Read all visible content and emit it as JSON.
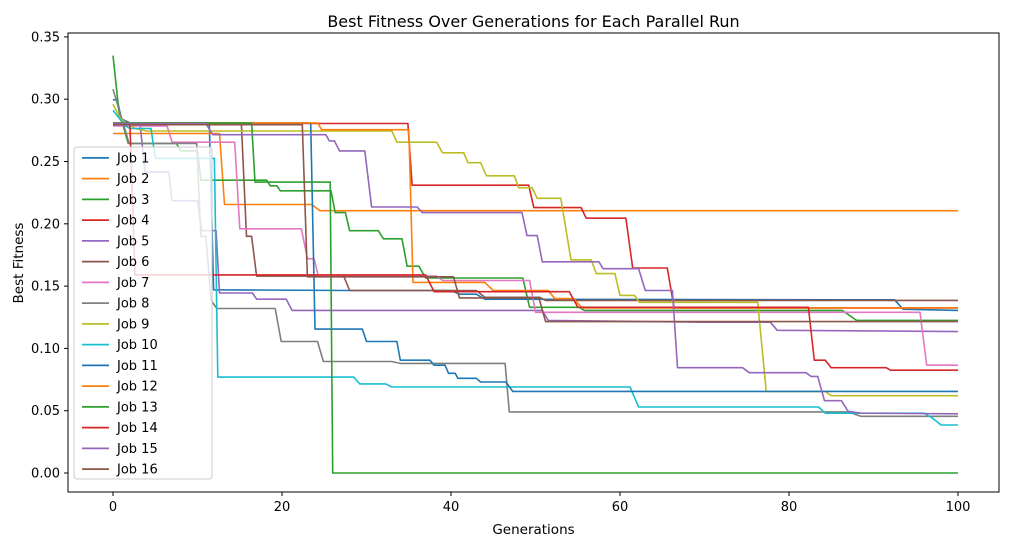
{
  "figure": {
    "title": "Best Fitness Over Generations for Each Parallel Run",
    "xlabel": "Generations",
    "ylabel": "Best Fitness"
  },
  "chart_data": {
    "type": "line",
    "title": "Best Fitness Over Generations for Each Parallel Run",
    "xlabel": "Generations",
    "ylabel": "Best Fitness",
    "xlim": [
      -5.3,
      104.9
    ],
    "ylim": [
      -0.016,
      0.352
    ],
    "xticks": [
      0,
      20,
      40,
      60,
      80,
      100
    ],
    "yticks": [
      "0.00",
      "0.05",
      "0.10",
      "0.15",
      "0.20",
      "0.25",
      "0.30",
      "0.35"
    ],
    "grid": false,
    "legend_position": "center left",
    "series": [
      {
        "name": "Job 1",
        "color": "#1f77b4",
        "points": [
          [
            0,
            0.2995
          ],
          [
            0.5,
            0.2995
          ],
          [
            1,
            0.284
          ],
          [
            2,
            0.281
          ],
          [
            11.4,
            0.281
          ],
          [
            11.9,
            0.147
          ],
          [
            28,
            0.1465
          ],
          [
            40,
            0.1465
          ],
          [
            41,
            0.1435
          ],
          [
            43,
            0.1435
          ],
          [
            44,
            0.1395
          ],
          [
            87,
            0.139
          ],
          [
            92.5,
            0.139
          ],
          [
            93.5,
            0.1315
          ],
          [
            100,
            0.1305
          ]
        ]
      },
      {
        "name": "Job 2",
        "color": "#ff7f0e",
        "points": [
          [
            0,
            0.2725
          ],
          [
            12.6,
            0.2725
          ],
          [
            13.2,
            0.2155
          ],
          [
            23.5,
            0.2155
          ],
          [
            24.5,
            0.2105
          ],
          [
            100,
            0.2105
          ]
        ]
      },
      {
        "name": "Job 3",
        "color": "#2ca02c",
        "points": [
          [
            0,
            0.335
          ],
          [
            0.7,
            0.2905
          ],
          [
            1.8,
            0.2645
          ],
          [
            7.5,
            0.2645
          ],
          [
            8,
            0.2585
          ],
          [
            10,
            0.2585
          ],
          [
            10.4,
            0.235
          ],
          [
            18.2,
            0.235
          ],
          [
            18.6,
            0.2305
          ],
          [
            19.4,
            0.2305
          ],
          [
            19.8,
            0.2265
          ],
          [
            25.8,
            0.2265
          ],
          [
            26.3,
            0.209
          ],
          [
            27.5,
            0.209
          ],
          [
            28,
            0.1945
          ],
          [
            31.4,
            0.1945
          ],
          [
            32,
            0.188
          ],
          [
            34.2,
            0.188
          ],
          [
            34.8,
            0.166
          ],
          [
            36.2,
            0.166
          ],
          [
            37,
            0.1565
          ],
          [
            48.5,
            0.1565
          ],
          [
            49.3,
            0.133
          ],
          [
            55.2,
            0.133
          ],
          [
            55.8,
            0.1305
          ],
          [
            86.3,
            0.1305
          ],
          [
            88,
            0.1225
          ],
          [
            100,
            0.1225
          ]
        ]
      },
      {
        "name": "Job 4",
        "color": "#d62728",
        "points": [
          [
            0,
            0.2805
          ],
          [
            34.9,
            0.2805
          ],
          [
            35.4,
            0.231
          ],
          [
            49.2,
            0.231
          ],
          [
            49.8,
            0.213
          ],
          [
            55.4,
            0.213
          ],
          [
            56,
            0.2045
          ],
          [
            60.7,
            0.2045
          ],
          [
            61.5,
            0.1645
          ],
          [
            65.6,
            0.1645
          ],
          [
            66.4,
            0.1325
          ],
          [
            100,
            0.1325
          ]
        ]
      },
      {
        "name": "Job 5",
        "color": "#9467bd",
        "points": [
          [
            0,
            0.2805
          ],
          [
            3.2,
            0.2805
          ],
          [
            3.8,
            0.2415
          ],
          [
            6.6,
            0.2415
          ],
          [
            7,
            0.2185
          ],
          [
            10,
            0.2185
          ],
          [
            10.5,
            0.1945
          ],
          [
            12.2,
            0.1945
          ],
          [
            12.6,
            0.1445
          ],
          [
            16.5,
            0.1445
          ],
          [
            17,
            0.1395
          ],
          [
            20.5,
            0.1395
          ],
          [
            21.2,
            0.1305
          ],
          [
            50.8,
            0.1305
          ],
          [
            51.5,
            0.1225
          ],
          [
            70,
            0.121
          ],
          [
            77.8,
            0.121
          ],
          [
            78.6,
            0.1145
          ],
          [
            100,
            0.1135
          ]
        ]
      },
      {
        "name": "Job 6",
        "color": "#8c564b",
        "points": [
          [
            0,
            0.2795
          ],
          [
            15.2,
            0.2795
          ],
          [
            15.8,
            0.19
          ],
          [
            16.4,
            0.19
          ],
          [
            17,
            0.158
          ],
          [
            27.3,
            0.158
          ],
          [
            28,
            0.1465
          ],
          [
            43,
            0.1465
          ],
          [
            44,
            0.141
          ],
          [
            50.5,
            0.141
          ],
          [
            51.2,
            0.1385
          ],
          [
            100,
            0.1385
          ]
        ]
      },
      {
        "name": "Job 7",
        "color": "#e377c2",
        "points": [
          [
            0,
            0.2785
          ],
          [
            6.4,
            0.2785
          ],
          [
            7,
            0.2655
          ],
          [
            14.4,
            0.2655
          ],
          [
            15,
            0.196
          ],
          [
            22.3,
            0.196
          ],
          [
            23,
            0.172
          ],
          [
            23.8,
            0.172
          ],
          [
            24.3,
            0.158
          ],
          [
            38.3,
            0.158
          ],
          [
            39,
            0.1545
          ],
          [
            49.3,
            0.1545
          ],
          [
            50,
            0.129
          ],
          [
            95.5,
            0.129
          ],
          [
            96.3,
            0.0865
          ],
          [
            100,
            0.0865
          ]
        ]
      },
      {
        "name": "Job 8",
        "color": "#7f7f7f",
        "points": [
          [
            0,
            0.308
          ],
          [
            1,
            0.285
          ],
          [
            1.9,
            0.2645
          ],
          [
            9.9,
            0.2645
          ],
          [
            10.4,
            0.19
          ],
          [
            11,
            0.19
          ],
          [
            11.6,
            0.1385
          ],
          [
            12.3,
            0.132
          ],
          [
            19.2,
            0.132
          ],
          [
            19.9,
            0.1055
          ],
          [
            24.2,
            0.1055
          ],
          [
            24.9,
            0.0895
          ],
          [
            33,
            0.0895
          ],
          [
            34,
            0.088
          ],
          [
            46.4,
            0.088
          ],
          [
            46.9,
            0.049
          ],
          [
            87,
            0.049
          ],
          [
            88.5,
            0.0455
          ],
          [
            100,
            0.0455
          ]
        ]
      },
      {
        "name": "Job 9",
        "color": "#bcbd22",
        "points": [
          [
            0,
            0.296
          ],
          [
            0.9,
            0.284
          ],
          [
            2.6,
            0.2765
          ],
          [
            4,
            0.2745
          ],
          [
            33,
            0.2745
          ],
          [
            33.6,
            0.2655
          ],
          [
            38.3,
            0.2655
          ],
          [
            39,
            0.257
          ],
          [
            41.5,
            0.257
          ],
          [
            42,
            0.249
          ],
          [
            43.5,
            0.249
          ],
          [
            44.2,
            0.2385
          ],
          [
            47.5,
            0.2385
          ],
          [
            48,
            0.229
          ],
          [
            49.6,
            0.229
          ],
          [
            50.2,
            0.2205
          ],
          [
            53,
            0.2205
          ],
          [
            54.2,
            0.171
          ],
          [
            56.6,
            0.171
          ],
          [
            57.2,
            0.16
          ],
          [
            59.4,
            0.16
          ],
          [
            60,
            0.1425
          ],
          [
            61.7,
            0.1425
          ],
          [
            62.3,
            0.137
          ],
          [
            76.3,
            0.137
          ],
          [
            77.3,
            0.0655
          ],
          [
            84.3,
            0.0655
          ],
          [
            85,
            0.062
          ],
          [
            100,
            0.062
          ]
        ]
      },
      {
        "name": "Job 10",
        "color": "#17becf",
        "points": [
          [
            0,
            0.291
          ],
          [
            1.4,
            0.279
          ],
          [
            2,
            0.2765
          ],
          [
            4.5,
            0.2765
          ],
          [
            5,
            0.2525
          ],
          [
            12,
            0.2525
          ],
          [
            12.4,
            0.077
          ],
          [
            28.5,
            0.077
          ],
          [
            29.2,
            0.0715
          ],
          [
            32.3,
            0.0715
          ],
          [
            33,
            0.069
          ],
          [
            61.2,
            0.069
          ],
          [
            62.2,
            0.053
          ],
          [
            83.5,
            0.053
          ],
          [
            84.3,
            0.048
          ],
          [
            96,
            0.048
          ],
          [
            97,
            0.044
          ],
          [
            98,
            0.0385
          ],
          [
            100,
            0.0385
          ]
        ]
      },
      {
        "name": "Job 11",
        "color": "#1f77b4",
        "points": [
          [
            0,
            0.281
          ],
          [
            23.4,
            0.281
          ],
          [
            23.9,
            0.1155
          ],
          [
            29.5,
            0.1155
          ],
          [
            30,
            0.1055
          ],
          [
            33.6,
            0.1055
          ],
          [
            34,
            0.0905
          ],
          [
            37.5,
            0.0905
          ],
          [
            38,
            0.0865
          ],
          [
            39.3,
            0.0865
          ],
          [
            39.7,
            0.08
          ],
          [
            40.5,
            0.08
          ],
          [
            40.8,
            0.076
          ],
          [
            43,
            0.076
          ],
          [
            43.5,
            0.073
          ],
          [
            46.5,
            0.073
          ],
          [
            47.3,
            0.0655
          ],
          [
            100,
            0.0655
          ]
        ]
      },
      {
        "name": "Job 12",
        "color": "#ff7f0e",
        "points": [
          [
            0,
            0.281
          ],
          [
            24.2,
            0.281
          ],
          [
            24.7,
            0.2755
          ],
          [
            35,
            0.2755
          ],
          [
            35.5,
            0.153
          ],
          [
            44,
            0.153
          ],
          [
            45,
            0.1465
          ],
          [
            51.5,
            0.1465
          ],
          [
            52.3,
            0.14
          ],
          [
            54.5,
            0.14
          ],
          [
            55.5,
            0.1325
          ],
          [
            100,
            0.1325
          ]
        ]
      },
      {
        "name": "Job 13",
        "color": "#2ca02c",
        "points": [
          [
            0,
            0.281
          ],
          [
            16.4,
            0.281
          ],
          [
            16.8,
            0.2335
          ],
          [
            25.7,
            0.2335
          ],
          [
            26,
            0.0
          ],
          [
            100,
            0.0
          ]
        ]
      },
      {
        "name": "Job 14",
        "color": "#d62728",
        "points": [
          [
            0,
            0.2805
          ],
          [
            2,
            0.2805
          ],
          [
            2.6,
            0.159
          ],
          [
            37,
            0.159
          ],
          [
            38,
            0.1455
          ],
          [
            54,
            0.1455
          ],
          [
            55,
            0.133
          ],
          [
            82.3,
            0.133
          ],
          [
            83,
            0.0905
          ],
          [
            84.3,
            0.0905
          ],
          [
            85,
            0.0845
          ],
          [
            91.5,
            0.0845
          ],
          [
            92,
            0.0825
          ],
          [
            100,
            0.0825
          ]
        ]
      },
      {
        "name": "Job 15",
        "color": "#9467bd",
        "points": [
          [
            0,
            0.2805
          ],
          [
            11,
            0.2805
          ],
          [
            11.8,
            0.2715
          ],
          [
            25.2,
            0.2715
          ],
          [
            25.6,
            0.2665
          ],
          [
            26.2,
            0.2665
          ],
          [
            26.8,
            0.2585
          ],
          [
            29.8,
            0.2585
          ],
          [
            30.6,
            0.2135
          ],
          [
            36,
            0.2135
          ],
          [
            36.6,
            0.209
          ],
          [
            48.4,
            0.209
          ],
          [
            49,
            0.1905
          ],
          [
            50.2,
            0.1905
          ],
          [
            50.8,
            0.1695
          ],
          [
            57.5,
            0.1695
          ],
          [
            58,
            0.164
          ],
          [
            62.2,
            0.164
          ],
          [
            63,
            0.1465
          ],
          [
            66.2,
            0.1465
          ],
          [
            66.8,
            0.0845
          ],
          [
            74.5,
            0.0845
          ],
          [
            75.3,
            0.0805
          ],
          [
            82,
            0.0805
          ],
          [
            82.6,
            0.0775
          ],
          [
            83.4,
            0.0775
          ],
          [
            84.2,
            0.058
          ],
          [
            86.2,
            0.058
          ],
          [
            87,
            0.0495
          ],
          [
            88.5,
            0.048
          ],
          [
            100,
            0.0475
          ]
        ]
      },
      {
        "name": "Job 16",
        "color": "#8c564b",
        "points": [
          [
            0,
            0.2795
          ],
          [
            22.4,
            0.2795
          ],
          [
            23,
            0.1575
          ],
          [
            40.3,
            0.1575
          ],
          [
            41,
            0.1405
          ],
          [
            50.4,
            0.1405
          ],
          [
            51.2,
            0.1215
          ],
          [
            100,
            0.1215
          ]
        ]
      }
    ]
  }
}
